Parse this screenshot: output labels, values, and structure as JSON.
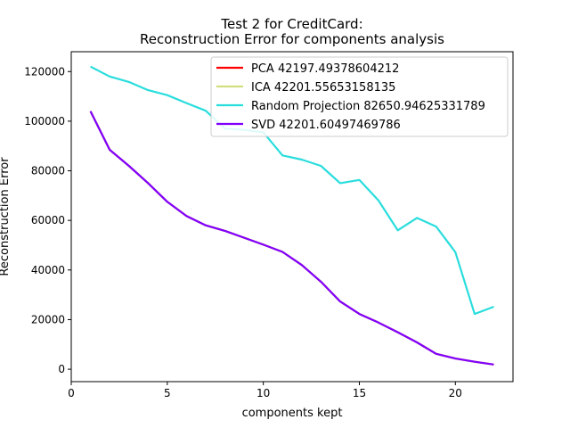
{
  "chart_data": {
    "type": "line",
    "title": "Test 2 for CreditCard:",
    "subtitle": "Reconstruction Error for components analysis",
    "xlabel": "components kept",
    "ylabel": "Reconstruction Error",
    "xlim": [
      0,
      23
    ],
    "ylim": [
      -5000,
      128000
    ],
    "x_ticks": [
      0,
      5,
      10,
      15,
      20
    ],
    "y_ticks": [
      0,
      20000,
      40000,
      60000,
      80000,
      100000,
      120000
    ],
    "x_tick_labels": [
      "0",
      "5",
      "10",
      "15",
      "20"
    ],
    "y_tick_labels": [
      "0",
      "20000",
      "40000",
      "60000",
      "80000",
      "100000",
      "120000"
    ],
    "grid": false,
    "legend_position": "top-right",
    "x": [
      1,
      2,
      3,
      4,
      5,
      6,
      7,
      8,
      9,
      10,
      11,
      12,
      13,
      14,
      15,
      16,
      17,
      18,
      19,
      20,
      21,
      22
    ],
    "series": [
      {
        "name": "PCA 42197.49378604212",
        "color": "#ff0000",
        "values": [
          104000,
          88500,
          82000,
          75000,
          67500,
          61800,
          58000,
          55800,
          53000,
          50200,
          47300,
          42000,
          35300,
          27300,
          22300,
          18800,
          14900,
          10800,
          6200,
          4300,
          3000,
          1900
        ]
      },
      {
        "name": "ICA 42201.55653158135",
        "color": "#d4dd80",
        "values": [
          104000,
          88500,
          82000,
          75000,
          67500,
          61800,
          58000,
          55800,
          53000,
          50200,
          47300,
          42000,
          35300,
          27300,
          22300,
          18800,
          14900,
          10800,
          6200,
          4300,
          3000,
          1900
        ]
      },
      {
        "name": "Random Projection 82650.94625331789",
        "color": "#2adddd",
        "values": [
          122000,
          118000,
          115800,
          112500,
          110500,
          107300,
          104200,
          97000,
          96500,
          95500,
          86200,
          84500,
          82000,
          75000,
          76300,
          68000,
          56000,
          61000,
          57500,
          47200,
          22300,
          25200
        ]
      },
      {
        "name": "SVD 42201.60497469786",
        "color": "#8000ff",
        "values": [
          104000,
          88500,
          82000,
          75000,
          67500,
          61800,
          58000,
          55800,
          53000,
          50200,
          47300,
          42000,
          35300,
          27300,
          22300,
          18800,
          14900,
          10800,
          6200,
          4300,
          3000,
          1900
        ]
      }
    ]
  }
}
